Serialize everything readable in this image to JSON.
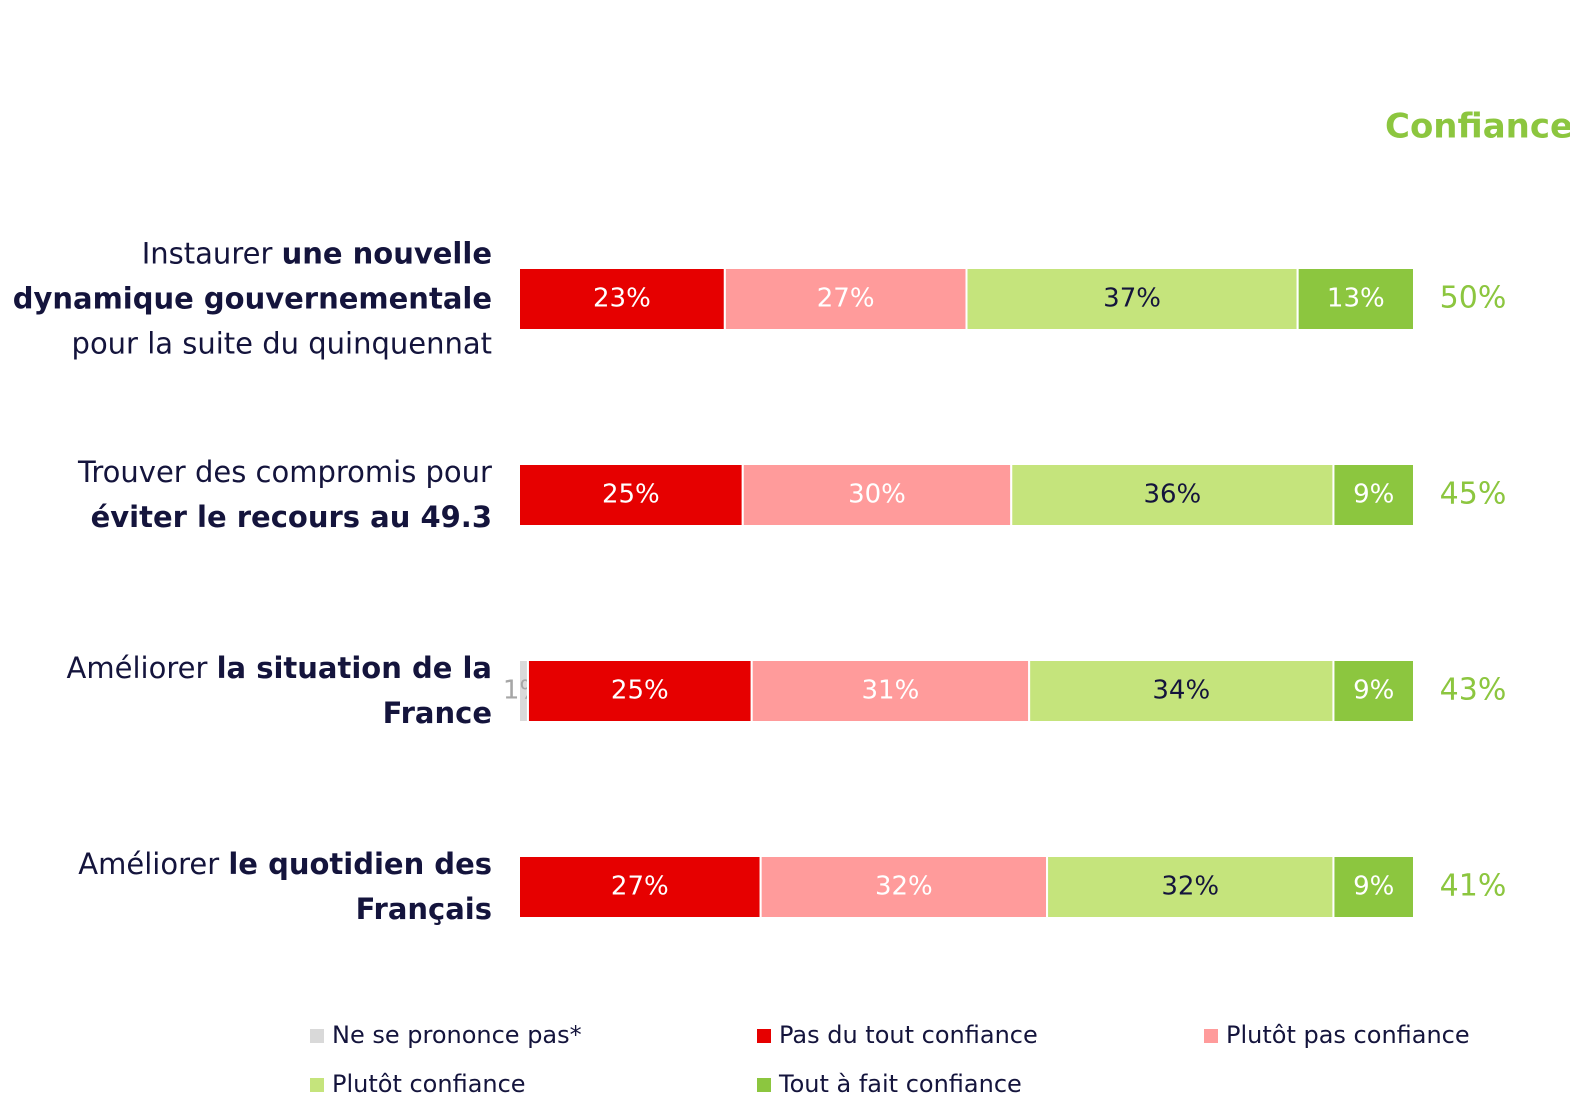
{
  "chart_data": {
    "type": "stacked-bar",
    "orientation": "horizontal",
    "categories": [
      [
        {
          "text": "Instaurer ",
          "bold": false
        },
        {
          "text": "une nouvelle dynamique gouvernementale",
          "bold": true
        },
        {
          "text": " pour la suite du quinquennat",
          "bold": false
        }
      ],
      [
        {
          "text": "Trouver des compromis pour ",
          "bold": false
        },
        {
          "text": "éviter le recours au 49.3",
          "bold": true
        }
      ],
      [
        {
          "text": "Améliorer ",
          "bold": false
        },
        {
          "text": "la situation de la France",
          "bold": true
        }
      ],
      [
        {
          "text": "Améliorer ",
          "bold": false
        },
        {
          "text": "le quotidien des Français",
          "bold": true
        }
      ]
    ],
    "xlim": [
      0,
      100
    ],
    "series": [
      {
        "name": "Ne se prononce pas*",
        "color": "#d9d9d9",
        "label_color": "#a6a6a6",
        "values": [
          null,
          null,
          1,
          null
        ],
        "value_labels": [
          null,
          null,
          "1%",
          null
        ]
      },
      {
        "name": "Pas du tout confiance",
        "color": "#e60000",
        "label_color": "#ffffff",
        "values": [
          23,
          25,
          25,
          27
        ],
        "value_labels": [
          "23%",
          "25%",
          "25%",
          "27%"
        ]
      },
      {
        "name": "Plutôt pas confiance",
        "color": "#ff9b9b",
        "label_color": "#ffffff",
        "values": [
          27,
          30,
          31,
          32
        ],
        "value_labels": [
          "27%",
          "30%",
          "31%",
          "32%"
        ]
      },
      {
        "name": "Plutôt confiance",
        "color": "#c5e47c",
        "label_color": "#14143c",
        "values": [
          37,
          36,
          34,
          32
        ],
        "value_labels": [
          "37%",
          "36%",
          "34%",
          "32%"
        ]
      },
      {
        "name": "Tout à fait confiance",
        "color": "#8cc63f",
        "label_color": "#ffffff",
        "values": [
          13,
          9,
          9,
          9
        ],
        "value_labels": [
          "13%",
          "9%",
          "9%",
          "9%"
        ]
      }
    ],
    "totals": {
      "title": "Confiance",
      "color": "#8cc63f",
      "values": [
        50,
        45,
        43,
        41
      ],
      "value_labels": [
        "50%",
        "45%",
        "43%",
        "41%"
      ]
    }
  }
}
